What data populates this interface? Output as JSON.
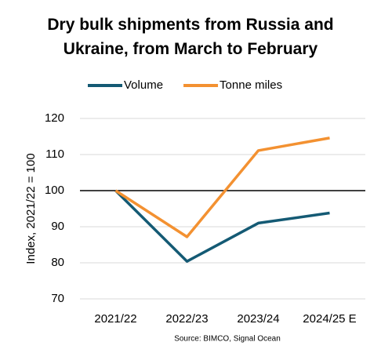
{
  "chart_data": {
    "type": "line",
    "title": "Dry bulk shipments from Russia and Ukraine, from March to February",
    "y_label": "Index, 2021/22 = 100",
    "source": "Source: BIMCO, Signal Ocean",
    "categories": [
      "2021/22",
      "2022/23",
      "2023/24",
      "2024/25 E"
    ],
    "series": [
      {
        "name": "Volume",
        "color": "#145a74",
        "values": [
          100,
          80.4,
          91,
          93.8
        ]
      },
      {
        "name": "Tonne miles",
        "color": "#f39131",
        "values": [
          100,
          87.2,
          111.1,
          114.6
        ]
      }
    ],
    "ylim": [
      70,
      120
    ],
    "yticks": [
      70,
      80,
      90,
      100,
      110,
      120
    ],
    "grid": true,
    "reference_line": 100,
    "legend": "top"
  }
}
